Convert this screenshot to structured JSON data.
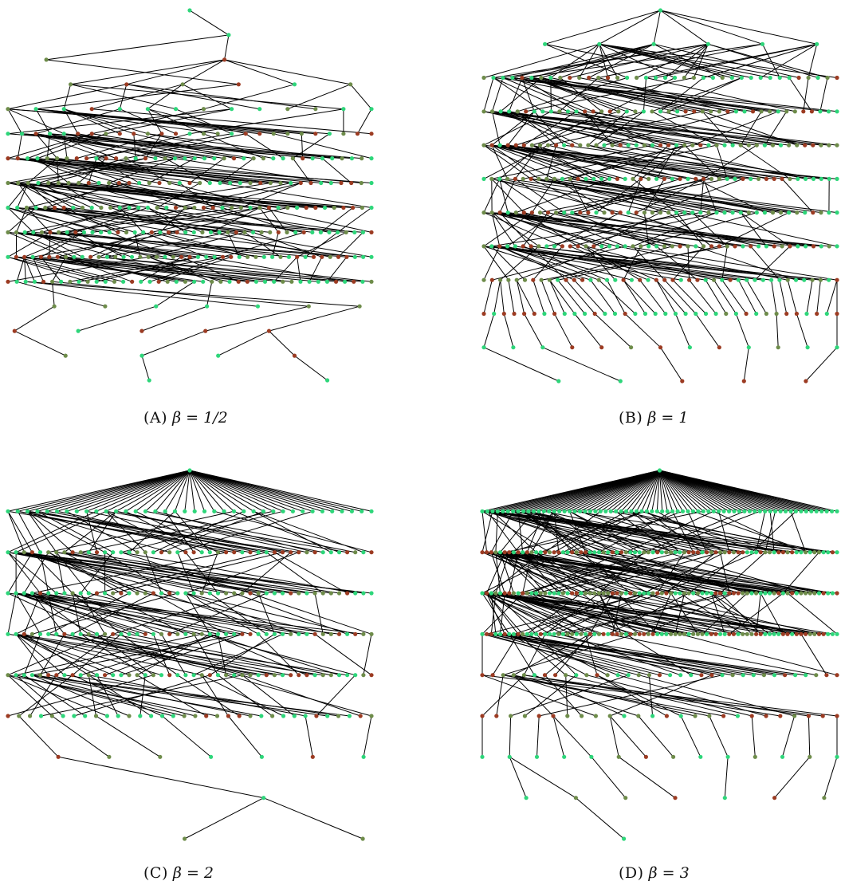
{
  "panels": [
    {
      "id": "a",
      "letter": "(A)",
      "math": "β = 1/2",
      "generations": [
        1,
        1,
        2,
        6,
        14,
        27,
        38,
        37,
        40,
        44,
        45,
        42,
        7,
        5,
        4,
        2
      ]
    },
    {
      "id": "b",
      "letter": "(B)",
      "math": "β = 1",
      "generations": [
        1,
        6,
        38,
        43,
        45,
        46,
        45,
        46,
        44,
        36,
        13,
        5
      ],
      "wrap_right": true
    },
    {
      "id": "c",
      "letter": "(C)",
      "math": "β = 2",
      "generations": [
        1,
        38,
        46,
        46,
        46,
        46,
        34,
        7,
        1,
        2
      ],
      "wrap_right": false
    },
    {
      "id": "d",
      "letter": "(D)",
      "math": "β = 3",
      "generations": [
        1,
        70,
        80,
        80,
        80,
        35,
        26,
        14,
        7,
        1
      ],
      "wrap_right": true
    }
  ],
  "colors": {
    "edge": "#000000",
    "node_green": "#2ed67a",
    "node_mid": "#6e8c4a",
    "node_red": "#9c3b22",
    "background": "#ffffff"
  }
}
